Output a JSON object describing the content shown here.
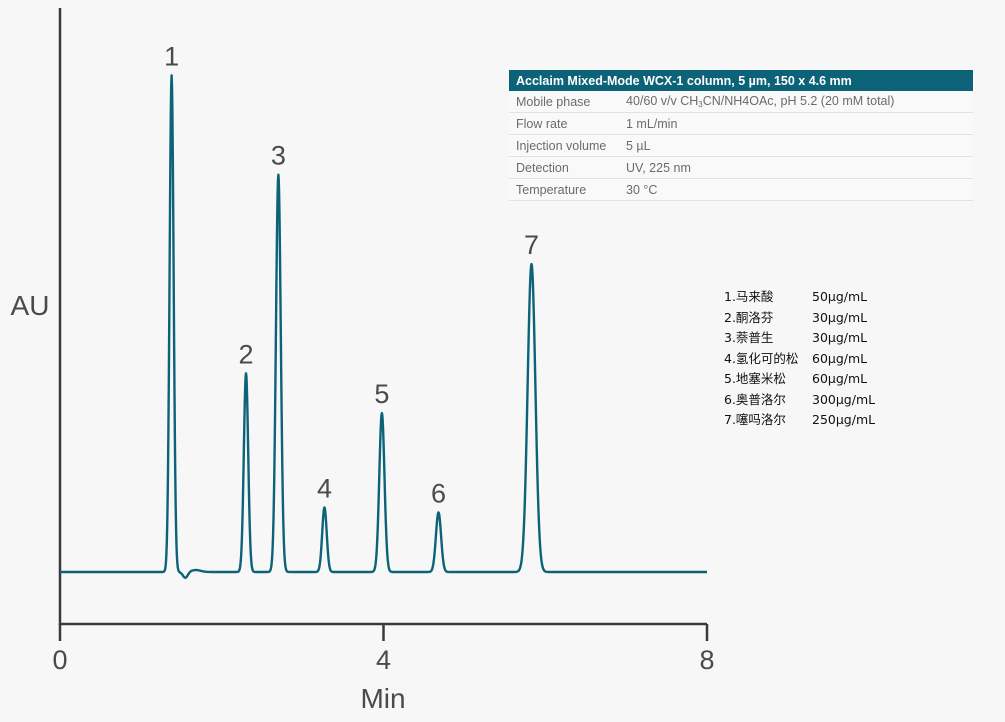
{
  "conditions": {
    "header": "Acclaim Mixed-Mode WCX-1 column, 5 µm, 150 x 4.6 mm",
    "rows": [
      {
        "label": "Mobile phase",
        "value_pre": "40/60 v/v CH",
        "sub1": "3",
        "value_mid": "CN/NH4OAc, pH 5.2 (20 mM total)"
      },
      {
        "label": "Flow rate",
        "value": "1 mL/min"
      },
      {
        "label": "Injection volume",
        "value": "5 µL"
      },
      {
        "label": "Detection",
        "value": "UV, 225 nm"
      },
      {
        "label": "Temperature",
        "value": "30 °C"
      }
    ]
  },
  "legend": [
    {
      "name": "1.马来酸",
      "conc": "50µg/mL"
    },
    {
      "name": "2.酮洛芬",
      "conc": "30µg/mL"
    },
    {
      "name": "3.萘普生",
      "conc": "30µg/mL"
    },
    {
      "name": "4.氢化可的松",
      "conc": "60µg/mL"
    },
    {
      "name": "5.地塞米松",
      "conc": "60µg/mL"
    },
    {
      "name": "6.奥普洛尔",
      "conc": "300µg/mL"
    },
    {
      "name": "7.噻吗洛尔",
      "conc": "250µg/mL"
    }
  ],
  "chart_data": {
    "type": "line",
    "title": "",
    "xlabel": "Min",
    "ylabel": "AU",
    "xlim": [
      0,
      8
    ],
    "ylim": [
      0,
      1.0
    ],
    "x_ticks": [
      "0",
      "4",
      "8"
    ],
    "baseline": 0.1,
    "series_color": "#0c6378",
    "peaks": [
      {
        "label": "1",
        "rt": 1.38,
        "height": 1.0,
        "width": 0.025
      },
      {
        "label": "2",
        "rt": 2.3,
        "height": 0.4,
        "width": 0.027
      },
      {
        "label": "3",
        "rt": 2.7,
        "height": 0.8,
        "width": 0.03
      },
      {
        "label": "4",
        "rt": 3.27,
        "height": 0.13,
        "width": 0.028
      },
      {
        "label": "5",
        "rt": 3.98,
        "height": 0.32,
        "width": 0.032
      },
      {
        "label": "6",
        "rt": 4.68,
        "height": 0.12,
        "width": 0.032
      },
      {
        "label": "7",
        "rt": 5.83,
        "height": 0.62,
        "width": 0.048
      }
    ]
  }
}
